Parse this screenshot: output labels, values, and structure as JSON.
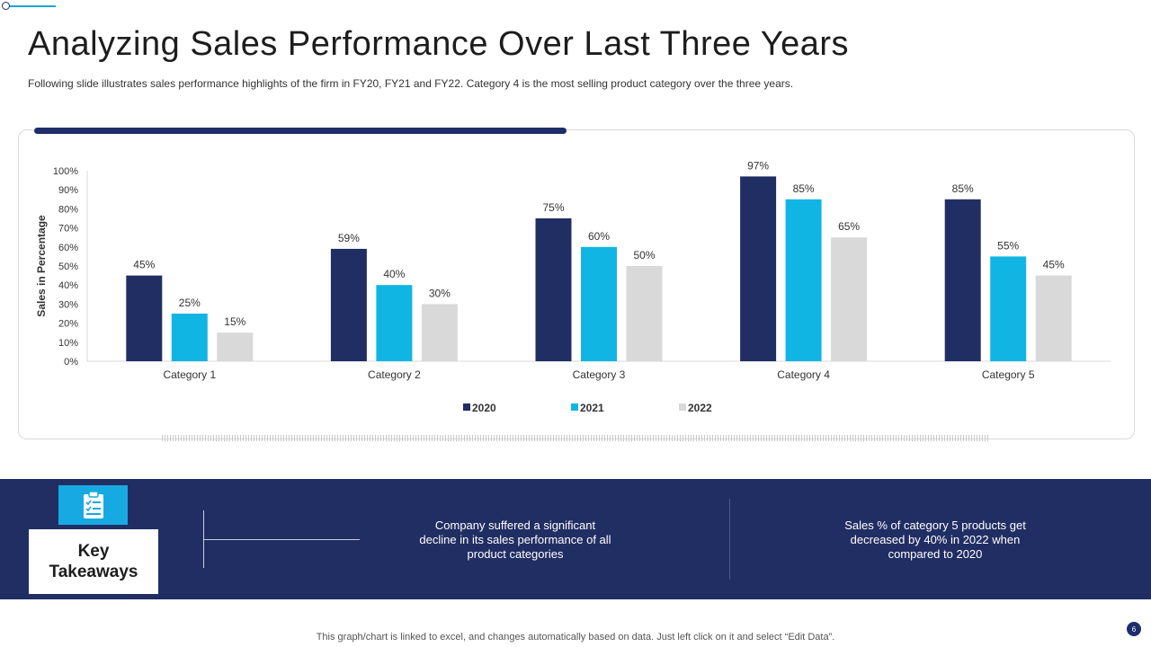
{
  "slide": {
    "title": "Analyzing Sales Performance Over Last Three Years",
    "subtitle": "Following slide illustrates sales performance highlights of the firm in FY20,  FY21 and FY22. Category 4 is the most selling product category over the three years.",
    "footer": "This graph/chart is linked to excel,  and changes automatically based on data. Just left click on it and select “Edit Data”.",
    "page_number": "6"
  },
  "takeaways": {
    "label": "Key\nTakeaways",
    "icon": "clipboard-checklist-icon",
    "items": [
      "Company suffered  a significant\ndecline in its sales performance  of all\nproduct categories",
      "Sales % of category 5 products get\ndecreased by 40% in 2022 when\ncompared  to 2020"
    ]
  },
  "colors": {
    "s2020": "#212e63",
    "s2021": "#11b5e4",
    "s2022": "#d9d9d9",
    "band": "#212e63"
  },
  "chart_data": {
    "type": "bar",
    "title": "",
    "xlabel": "",
    "ylabel": "Sales in Percentage",
    "categories": [
      "Category 1",
      "Category 2",
      "Category 3",
      "Category 4",
      "Category 5"
    ],
    "series": [
      {
        "name": "2020",
        "values": [
          45,
          59,
          75,
          97,
          85
        ]
      },
      {
        "name": "2021",
        "values": [
          25,
          40,
          60,
          85,
          55
        ]
      },
      {
        "name": "2022",
        "values": [
          15,
          30,
          50,
          65,
          45
        ]
      }
    ],
    "ylim": [
      0,
      100
    ],
    "yticks": [
      0,
      10,
      20,
      30,
      40,
      50,
      60,
      70,
      80,
      90,
      100
    ],
    "tick_suffix": "%",
    "value_suffix": "%",
    "legend_position": "bottom-center",
    "grid": false
  }
}
